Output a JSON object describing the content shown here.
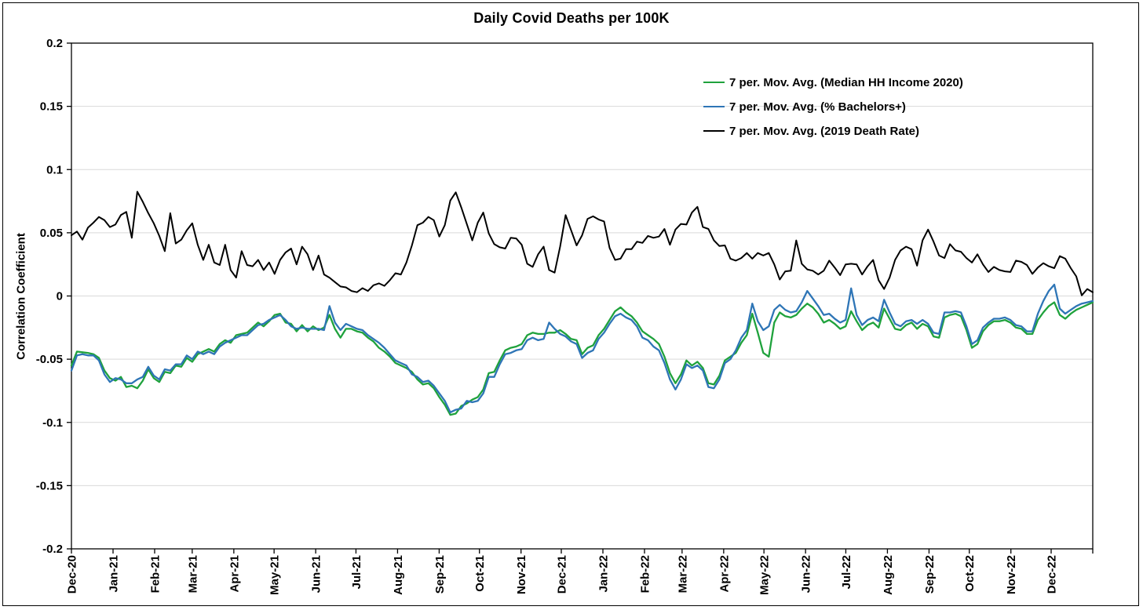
{
  "figure": {
    "title": "Daily Covid Deaths per 100K"
  },
  "chart_data": {
    "type": "line",
    "title": "Daily Covid Deaths per 100K",
    "xlabel": "",
    "ylabel": "Correlation Coefficient",
    "ylim": [
      -0.2,
      0.2
    ],
    "y_tick_values": [
      0.2,
      0.15,
      0.1,
      0.05,
      0,
      -0.05,
      -0.1,
      -0.15,
      -0.2
    ],
    "y_tick_labels": [
      "0.2",
      "0.15",
      "0.1",
      "0.05",
      "0",
      "-0.05",
      "-0.1",
      "-0.15",
      "-0.2"
    ],
    "x_tick_labels": [
      "Dec-20",
      "Jan-21",
      "Feb-21",
      "Mar-21",
      "Apr-21",
      "May-21",
      "Jun-21",
      "Jul-21",
      "Aug-21",
      "Sep-21",
      "Oct-21",
      "Nov-21",
      "Dec-21",
      "Jan-22",
      "Feb-22",
      "Mar-22",
      "Apr-22",
      "May-22",
      "Jun-22",
      "Jul-22",
      "Aug-22",
      "Sep-22",
      "Oct-22",
      "Nov-22",
      "Dec-22"
    ],
    "x_tick_days": [
      0,
      31,
      62,
      90,
      121,
      151,
      182,
      212,
      243,
      274,
      304,
      335,
      365,
      396,
      427,
      455,
      486,
      516,
      547,
      577,
      608,
      639,
      669,
      700,
      730
    ],
    "x_total_days": 761,
    "grid": "horizontal",
    "grid_color": "#D9D9D9",
    "axis_color": "#000000",
    "background_color": "#FFFFFF",
    "legend_position": "inside-top-right",
    "series": [
      {
        "name": "7 per. Mov. Avg. (Median HH Income 2020)",
        "color": "#1FA23C",
        "stroke_width": 2.3,
        "values": [
          -0.055,
          -0.044,
          -0.0445,
          -0.045,
          -0.046,
          -0.049,
          -0.059,
          -0.065,
          -0.067,
          -0.064,
          -0.072,
          -0.071,
          -0.073,
          -0.067,
          -0.058,
          -0.065,
          -0.068,
          -0.06,
          -0.061,
          -0.055,
          -0.056,
          -0.049,
          -0.052,
          -0.046,
          -0.044,
          -0.042,
          -0.044,
          -0.038,
          -0.035,
          -0.037,
          -0.031,
          -0.03,
          -0.029,
          -0.025,
          -0.021,
          -0.024,
          -0.02,
          -0.015,
          -0.014,
          -0.021,
          -0.022,
          -0.028,
          -0.023,
          -0.028,
          -0.024,
          -0.027,
          -0.025,
          -0.015,
          -0.026,
          -0.033,
          -0.026,
          -0.026,
          -0.028,
          -0.029,
          -0.033,
          -0.036,
          -0.041,
          -0.044,
          -0.048,
          -0.053,
          -0.055,
          -0.057,
          -0.06,
          -0.066,
          -0.07,
          -0.069,
          -0.073,
          -0.08,
          -0.086,
          -0.094,
          -0.093,
          -0.087,
          -0.085,
          -0.082,
          -0.08,
          -0.074,
          -0.061,
          -0.06,
          -0.051,
          -0.043,
          -0.041,
          -0.04,
          -0.038,
          -0.031,
          -0.029,
          -0.03,
          -0.03,
          -0.029,
          -0.029,
          -0.027,
          -0.03,
          -0.034,
          -0.035,
          -0.046,
          -0.041,
          -0.039,
          -0.031,
          -0.026,
          -0.019,
          -0.012,
          -0.009,
          -0.013,
          -0.016,
          -0.021,
          -0.028,
          -0.031,
          -0.034,
          -0.038,
          -0.048,
          -0.061,
          -0.069,
          -0.062,
          -0.051,
          -0.055,
          -0.052,
          -0.057,
          -0.069,
          -0.07,
          -0.063,
          -0.051,
          -0.048,
          -0.045,
          -0.037,
          -0.031,
          -0.014,
          -0.029,
          -0.045,
          -0.048,
          -0.021,
          -0.013,
          -0.016,
          -0.017,
          -0.015,
          -0.01,
          -0.006,
          -0.009,
          -0.014,
          -0.021,
          -0.019,
          -0.022,
          -0.026,
          -0.024,
          -0.012,
          -0.02,
          -0.027,
          -0.023,
          -0.021,
          -0.025,
          -0.01,
          -0.018,
          -0.026,
          -0.027,
          -0.023,
          -0.021,
          -0.026,
          -0.022,
          -0.024,
          -0.032,
          -0.033,
          -0.017,
          -0.015,
          -0.014,
          -0.016,
          -0.027,
          -0.041,
          -0.038,
          -0.028,
          -0.023,
          -0.02,
          -0.02,
          -0.019,
          -0.021,
          -0.025,
          -0.026,
          -0.03,
          -0.03,
          -0.019,
          -0.013,
          -0.008,
          -0.005,
          -0.015,
          -0.018,
          -0.014,
          -0.011,
          -0.009,
          -0.007,
          -0.005
        ]
      },
      {
        "name": "7 per. Mov. Avg. (% Bachelors+)",
        "color": "#2E75B6",
        "stroke_width": 2.3,
        "values": [
          -0.059,
          -0.047,
          -0.046,
          -0.047,
          -0.047,
          -0.051,
          -0.062,
          -0.068,
          -0.065,
          -0.066,
          -0.069,
          -0.069,
          -0.066,
          -0.064,
          -0.056,
          -0.063,
          -0.066,
          -0.058,
          -0.059,
          -0.054,
          -0.054,
          -0.047,
          -0.05,
          -0.044,
          -0.046,
          -0.044,
          -0.046,
          -0.04,
          -0.037,
          -0.035,
          -0.033,
          -0.031,
          -0.031,
          -0.027,
          -0.023,
          -0.022,
          -0.019,
          -0.017,
          -0.015,
          -0.019,
          -0.024,
          -0.026,
          -0.025,
          -0.026,
          -0.026,
          -0.026,
          -0.027,
          -0.008,
          -0.021,
          -0.027,
          -0.022,
          -0.024,
          -0.026,
          -0.027,
          -0.031,
          -0.034,
          -0.037,
          -0.041,
          -0.046,
          -0.051,
          -0.053,
          -0.055,
          -0.062,
          -0.064,
          -0.068,
          -0.067,
          -0.071,
          -0.077,
          -0.083,
          -0.092,
          -0.09,
          -0.089,
          -0.083,
          -0.084,
          -0.083,
          -0.077,
          -0.064,
          -0.064,
          -0.054,
          -0.046,
          -0.045,
          -0.043,
          -0.042,
          -0.035,
          -0.033,
          -0.035,
          -0.034,
          -0.021,
          -0.026,
          -0.03,
          -0.032,
          -0.036,
          -0.038,
          -0.049,
          -0.045,
          -0.043,
          -0.034,
          -0.029,
          -0.022,
          -0.016,
          -0.014,
          -0.017,
          -0.019,
          -0.024,
          -0.033,
          -0.035,
          -0.04,
          -0.043,
          -0.053,
          -0.066,
          -0.074,
          -0.066,
          -0.054,
          -0.057,
          -0.055,
          -0.059,
          -0.072,
          -0.073,
          -0.066,
          -0.053,
          -0.05,
          -0.043,
          -0.033,
          -0.027,
          -0.006,
          -0.02,
          -0.027,
          -0.024,
          -0.011,
          -0.007,
          -0.011,
          -0.013,
          -0.012,
          -0.005,
          0.004,
          -0.002,
          -0.008,
          -0.015,
          -0.014,
          -0.018,
          -0.021,
          -0.019,
          0.006,
          -0.015,
          -0.023,
          -0.019,
          -0.017,
          -0.02,
          -0.003,
          -0.013,
          -0.022,
          -0.024,
          -0.02,
          -0.019,
          -0.022,
          -0.019,
          -0.022,
          -0.029,
          -0.03,
          -0.013,
          -0.013,
          -0.012,
          -0.013,
          -0.024,
          -0.038,
          -0.035,
          -0.025,
          -0.021,
          -0.018,
          -0.018,
          -0.017,
          -0.019,
          -0.023,
          -0.024,
          -0.028,
          -0.028,
          -0.014,
          -0.004,
          0.004,
          0.009,
          -0.01,
          -0.014,
          -0.011,
          -0.008,
          -0.006,
          -0.005,
          -0.004
        ]
      },
      {
        "name": "7 per. Mov. Avg. (2019 Death Rate)",
        "color": "#000000",
        "stroke_width": 2.0,
        "values": [
          0.048,
          0.051,
          0.0445,
          0.054,
          0.058,
          0.0625,
          0.06,
          0.0545,
          0.0565,
          0.064,
          0.0665,
          0.046,
          0.0825,
          0.0745,
          0.0655,
          0.0575,
          0.0475,
          0.0355,
          0.0655,
          0.0415,
          0.0445,
          0.052,
          0.0575,
          0.0405,
          0.0285,
          0.0405,
          0.0265,
          0.0245,
          0.0405,
          0.0205,
          0.0145,
          0.0355,
          0.0245,
          0.0235,
          0.0285,
          0.0205,
          0.0265,
          0.0175,
          0.0285,
          0.0345,
          0.0375,
          0.025,
          0.039,
          0.033,
          0.0205,
          0.032,
          0.017,
          0.0145,
          0.011,
          0.0075,
          0.0068,
          0.004,
          0.003,
          0.0062,
          0.004,
          0.0085,
          0.01,
          0.008,
          0.0125,
          0.018,
          0.017,
          0.0265,
          0.04,
          0.056,
          0.058,
          0.0625,
          0.06,
          0.047,
          0.056,
          0.0755,
          0.082,
          0.07,
          0.057,
          0.044,
          0.058,
          0.066,
          0.0495,
          0.041,
          0.0385,
          0.0375,
          0.046,
          0.0455,
          0.0405,
          0.0255,
          0.023,
          0.033,
          0.039,
          0.0205,
          0.0185,
          0.039,
          0.064,
          0.052,
          0.04,
          0.048,
          0.061,
          0.063,
          0.0605,
          0.059,
          0.038,
          0.0285,
          0.0295,
          0.037,
          0.037,
          0.043,
          0.042,
          0.0475,
          0.046,
          0.047,
          0.053,
          0.0405,
          0.0525,
          0.057,
          0.0565,
          0.066,
          0.0705,
          0.0545,
          0.053,
          0.044,
          0.0395,
          0.04,
          0.0295,
          0.028,
          0.03,
          0.034,
          0.0295,
          0.034,
          0.032,
          0.034,
          0.025,
          0.013,
          0.0195,
          0.02,
          0.044,
          0.0255,
          0.021,
          0.02,
          0.017,
          0.02,
          0.028,
          0.0225,
          0.0165,
          0.025,
          0.0255,
          0.025,
          0.017,
          0.0235,
          0.0285,
          0.0125,
          0.0055,
          0.0145,
          0.0285,
          0.036,
          0.039,
          0.037,
          0.024,
          0.044,
          0.0525,
          0.043,
          0.032,
          0.03,
          0.041,
          0.036,
          0.035,
          0.03,
          0.0265,
          0.033,
          0.025,
          0.019,
          0.023,
          0.0205,
          0.0195,
          0.019,
          0.028,
          0.027,
          0.0245,
          0.0175,
          0.0225,
          0.026,
          0.0235,
          0.022,
          0.0315,
          0.0295,
          0.022,
          0.0155,
          0.0005,
          0.0055,
          0.003
        ]
      }
    ]
  }
}
